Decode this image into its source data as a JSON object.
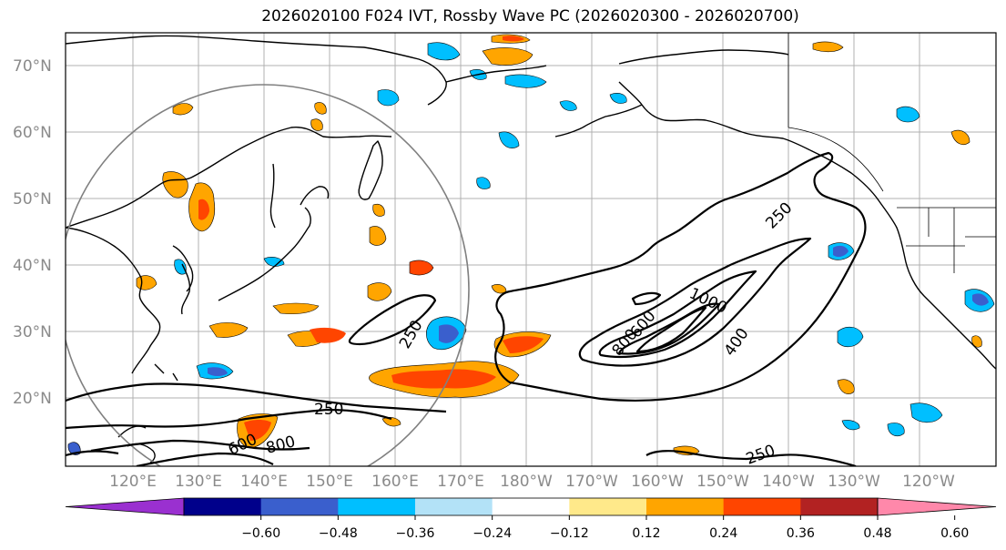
{
  "title": "2026020100 F024 IVT, Rossby Wave PC (2026020300 - 2026020700)",
  "map": {
    "lat_labels": [
      "70°N",
      "60°N",
      "50°N",
      "40°N",
      "30°N",
      "20°N"
    ],
    "lon_labels": [
      "120°E",
      "130°E",
      "140°E",
      "150°E",
      "160°E",
      "170°E",
      "180°W",
      "170°W",
      "160°W",
      "150°W",
      "140°W",
      "130°W",
      "120°W"
    ],
    "contour_labels": [
      "250",
      "250",
      "250",
      "250",
      "1000",
      "800",
      "600",
      "400",
      "600",
      "800"
    ]
  },
  "colorbar": {
    "colors": [
      "#9a30d0",
      "#00008b",
      "#3a5fcd",
      "#00bfff",
      "#b3e2f7",
      "#ffffff",
      "#ffe98a",
      "#ffa500",
      "#ff4500",
      "#b22222",
      "#ff88aa"
    ],
    "ticks": [
      "−0.60",
      "−0.48",
      "−0.36",
      "−0.24",
      "−0.12",
      "0.12",
      "0.24",
      "0.36",
      "0.48",
      "0.60"
    ]
  }
}
